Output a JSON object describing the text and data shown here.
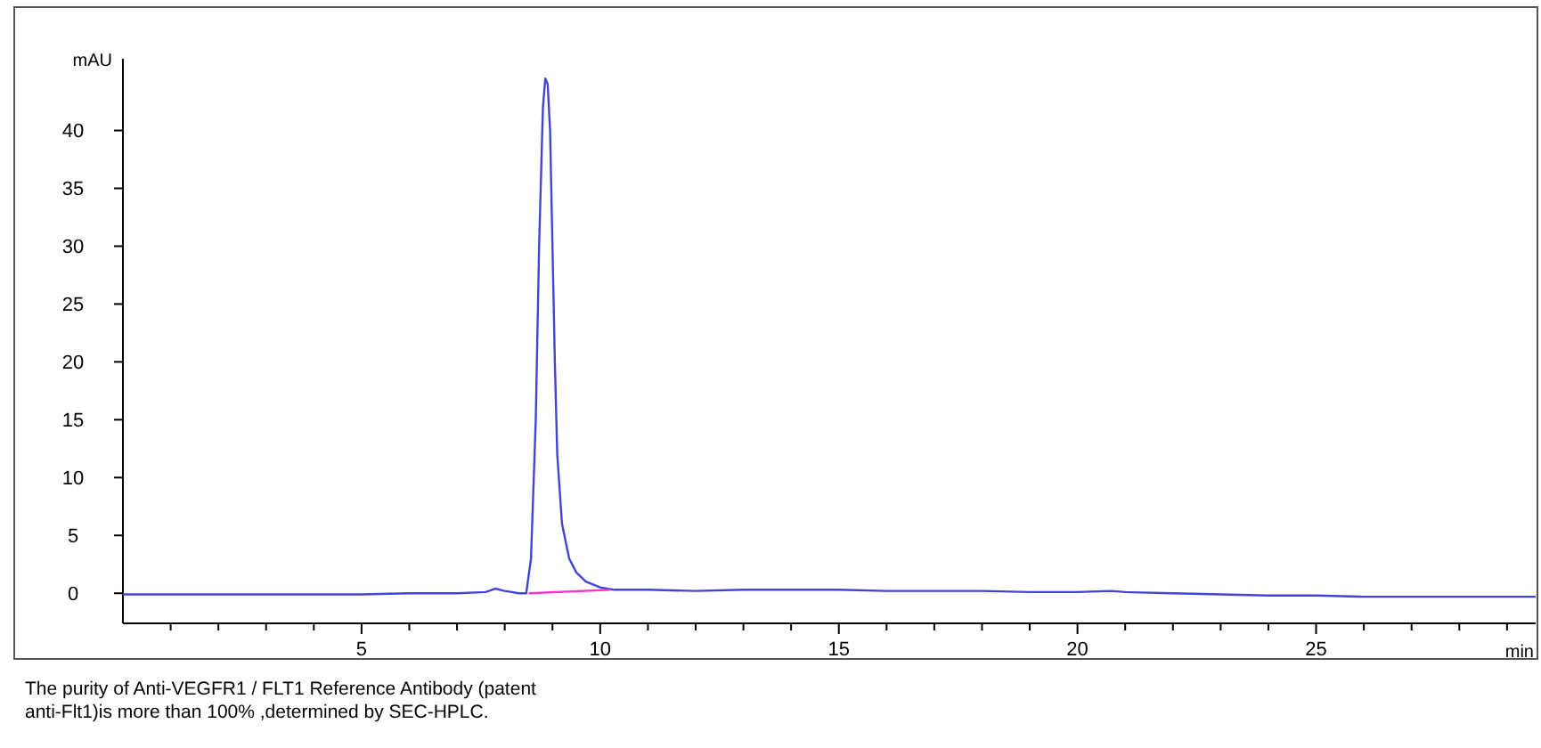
{
  "chart_data": {
    "type": "line",
    "ylabel": "mAU",
    "xlabel": "min",
    "xlim": [
      0,
      29.6
    ],
    "ylim": [
      -2.6,
      46.2
    ],
    "xticks": [
      {
        "value": 1,
        "label": null
      },
      {
        "value": 2,
        "label": null
      },
      {
        "value": 3,
        "label": null
      },
      {
        "value": 4,
        "label": null
      },
      5,
      {
        "value": 6,
        "label": null
      },
      {
        "value": 7,
        "label": null
      },
      {
        "value": 8,
        "label": null
      },
      {
        "value": 9,
        "label": null
      },
      10,
      {
        "value": 11,
        "label": null
      },
      {
        "value": 12,
        "label": null
      },
      {
        "value": 13,
        "label": null
      },
      {
        "value": 14,
        "label": null
      },
      15,
      {
        "value": 16,
        "label": null
      },
      {
        "value": 17,
        "label": null
      },
      {
        "value": 18,
        "label": null
      },
      {
        "value": 19,
        "label": null
      },
      20,
      {
        "value": 21,
        "label": null
      },
      {
        "value": 22,
        "label": null
      },
      {
        "value": 23,
        "label": null
      },
      {
        "value": 24,
        "label": null
      },
      25,
      {
        "value": 26,
        "label": null
      },
      {
        "value": 27,
        "label": null
      },
      {
        "value": 28,
        "label": null
      },
      {
        "value": 29,
        "label": null
      }
    ],
    "yticks": [
      0,
      5,
      10,
      15,
      20,
      25,
      30,
      35,
      40
    ],
    "grid": false,
    "marker": "none",
    "line_style": "solid",
    "series": [
      {
        "color": "#4444d4",
        "x": [
          0,
          1,
          2,
          3,
          4,
          5,
          6,
          7,
          7.6,
          7.8,
          8.0,
          8.3,
          8.45,
          8.55,
          8.65,
          8.72,
          8.8,
          8.85,
          8.9,
          8.95,
          9.0,
          9.05,
          9.1,
          9.2,
          9.35,
          9.5,
          9.7,
          10.0,
          10.3,
          11,
          12,
          13,
          14,
          15,
          16,
          17,
          18,
          19,
          20,
          20.7,
          21,
          22,
          23,
          24,
          25,
          26,
          27,
          28,
          29,
          29.6
        ],
        "values": [
          -0.1,
          -0.1,
          -0.1,
          -0.1,
          -0.1,
          -0.1,
          0,
          0,
          0.1,
          0.4,
          0.2,
          0,
          0,
          3,
          15,
          30,
          42,
          44.5,
          44,
          40,
          30,
          20,
          12,
          6,
          3,
          1.8,
          1,
          0.5,
          0.3,
          0.3,
          0.2,
          0.3,
          0.3,
          0.3,
          0.2,
          0.2,
          0.2,
          0.1,
          0.1,
          0.2,
          0.1,
          0,
          -0.1,
          -0.2,
          -0.2,
          -0.3,
          -0.3,
          -0.3,
          -0.3,
          -0.3
        ]
      },
      {
        "color": "#ff33cc",
        "x": [
          8.5,
          10.2
        ],
        "values": [
          0,
          0.3
        ]
      }
    ],
    "annotations": [
      "The purity of Anti-VEGFR1 / FLT1 Reference Antibody (patent\nanti-Flt1)is more than 100% ,determined by SEC-HPLC."
    ]
  }
}
